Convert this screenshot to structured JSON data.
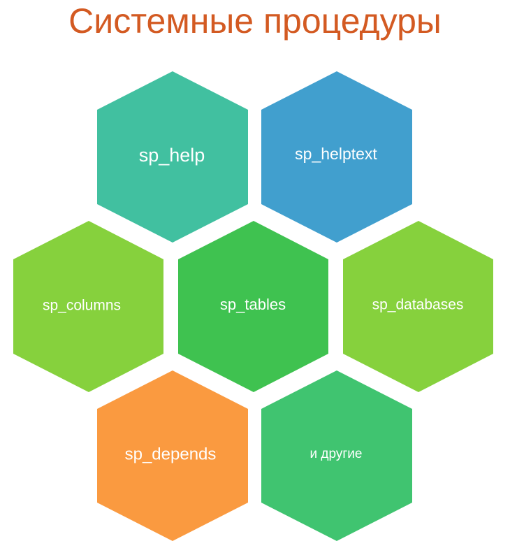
{
  "title": "Системные процедуры",
  "hexagons": [
    {
      "id": "sp-help",
      "label": "sp_help",
      "color": "#41c0a0"
    },
    {
      "id": "sp-helptext",
      "label": "sp_helptext",
      "color": "#419fce"
    },
    {
      "id": "sp-columns",
      "label": "sp_columns",
      "color": "#86d13d"
    },
    {
      "id": "sp-tables",
      "label": "sp_tables",
      "color": "#3fc250"
    },
    {
      "id": "sp-databases",
      "label": "sp_databases",
      "color": "#86d13d"
    },
    {
      "id": "sp-depends",
      "label": "sp_depends",
      "color": "#fa9a40"
    },
    {
      "id": "other",
      "label": "и другие",
      "color": "#40c470"
    }
  ]
}
